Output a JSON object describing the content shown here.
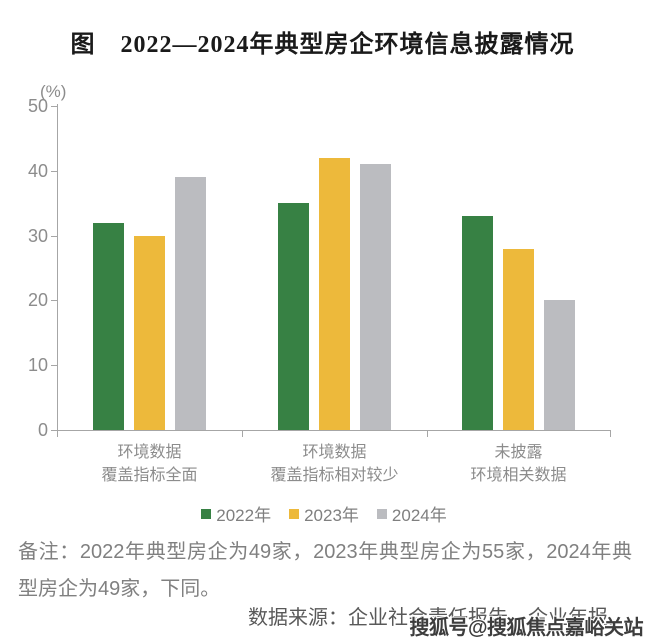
{
  "title": "图　2022—2024年典型房企环境信息披露情况",
  "chart_data": {
    "type": "bar",
    "title": "图　2022—2024年典型房企环境信息披露情况",
    "unit_label": "(%)",
    "categories": [
      {
        "line1": "环境数据",
        "line2": "覆盖指标全面"
      },
      {
        "line1": "环境数据",
        "line2": "覆盖指标相对较少"
      },
      {
        "line1": "未披露",
        "line2": "环境相关数据"
      }
    ],
    "series": [
      {
        "name": "2022年",
        "color": "#378144",
        "values": [
          32,
          35,
          33
        ]
      },
      {
        "name": "2023年",
        "color": "#EDB93B",
        "values": [
          30,
          42,
          28
        ]
      },
      {
        "name": "2024年",
        "color": "#BBBCC0",
        "values": [
          39,
          41,
          20
        ]
      }
    ],
    "ylim": [
      0,
      50
    ],
    "yticks": [
      0,
      10,
      20,
      30,
      40,
      50
    ],
    "grid": false,
    "legend_position": "bottom"
  },
  "colors": {
    "bar_2022": "#378144",
    "bar_2023": "#EDB93B",
    "bar_2024": "#BBBCC0",
    "axis": "#A6A6A6",
    "tick_label": "#8C8C8C",
    "legend_text": "#7F7F7F",
    "note_text": "#808080",
    "source_text": "#595959",
    "title_text": "#1A1A1A"
  },
  "note_line": "备注：2022年典型房企为49家，2023年典型房企为55家，2024年典型房企为49家，下同。",
  "source_line": "数据来源：企业社会责任报告、企业年报。",
  "watermark": "搜狐号@搜狐焦点嘉峪关站"
}
